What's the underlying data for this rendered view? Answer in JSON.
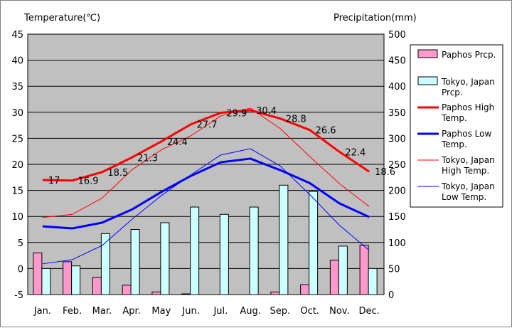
{
  "chart_data": {
    "type": "bar",
    "categories": [
      "Jan.",
      "Feb.",
      "Mar.",
      "Apr.",
      "May",
      "Jun.",
      "Jul.",
      "Aug.",
      "Sep.",
      "Oct.",
      "Nov.",
      "Dec."
    ],
    "y_left": {
      "label": "Temperature(℃)",
      "range": [
        -5,
        45
      ],
      "ticks": [
        -5,
        0,
        5,
        10,
        15,
        20,
        25,
        30,
        35,
        40,
        45
      ]
    },
    "y_right": {
      "label": "Precipitation(mm)",
      "range": [
        0,
        500
      ],
      "ticks": [
        0,
        50,
        100,
        150,
        200,
        250,
        300,
        350,
        400,
        450,
        500
      ]
    },
    "grid": true,
    "plot_background": "#c0c0c0",
    "legend_position": "right",
    "bar_series": [
      {
        "name": "Paphos Prcp.",
        "axis": "right",
        "color": "#ff99cc",
        "values": [
          80,
          63,
          33,
          18,
          5,
          1,
          0,
          0,
          5,
          19,
          66,
          95
        ]
      },
      {
        "name": "Tokyo, Japan Prcp.",
        "axis": "right",
        "color": "#ccffff",
        "values": [
          50,
          55,
          117,
          125,
          138,
          168,
          154,
          168,
          210,
          198,
          93,
          50
        ]
      }
    ],
    "line_series": [
      {
        "name": "Paphos High Temp.",
        "axis": "left",
        "color": "#ff0000",
        "width": 3,
        "values": [
          17,
          16.9,
          18.5,
          21.3,
          24.4,
          27.7,
          29.9,
          30.4,
          28.8,
          26.6,
          22.4,
          18.6
        ],
        "labels": [
          "17",
          "16.9",
          "18.5",
          "21.3",
          "24.4",
          "27.7",
          "29.9",
          "30.4",
          "28.8",
          "26.6",
          "22.4",
          "18.6"
        ]
      },
      {
        "name": "Paphos Low Temp.",
        "axis": "left",
        "color": "#0000ff",
        "width": 3,
        "values": [
          8.1,
          7.7,
          8.8,
          11.3,
          14.7,
          17.8,
          20.4,
          21.1,
          18.9,
          16.4,
          12.5,
          9.9
        ]
      },
      {
        "name": "Tokyo, Japan High Temp.",
        "axis": "left",
        "color": "#ff0000",
        "width": 1,
        "values": [
          9.8,
          10.4,
          13.5,
          18.9,
          22.8,
          25.5,
          29.3,
          30.8,
          26.9,
          21.5,
          16.3,
          11.9
        ]
      },
      {
        "name": "Tokyo, Japan Low Temp.",
        "axis": "left",
        "color": "#0000ff",
        "width": 1,
        "values": [
          0.9,
          1.7,
          4.4,
          9.4,
          14.0,
          18.0,
          21.8,
          23.0,
          19.7,
          14.2,
          8.3,
          3.5
        ]
      }
    ]
  },
  "legend": {
    "items": [
      {
        "label_lines": [
          "Paphos Prcp."
        ],
        "kind": "bar",
        "color": "#ff99cc"
      },
      {
        "label_lines": [
          "Tokyo, Japan",
          "Prcp."
        ],
        "kind": "bar",
        "color": "#ccffff"
      },
      {
        "label_lines": [
          "Paphos High",
          "Temp."
        ],
        "kind": "line",
        "color": "#ff0000",
        "width": 3
      },
      {
        "label_lines": [
          "Paphos Low",
          "Temp."
        ],
        "kind": "line",
        "color": "#0000ff",
        "width": 3
      },
      {
        "label_lines": [
          "Tokyo, Japan",
          "High Temp."
        ],
        "kind": "line",
        "color": "#ff0000",
        "width": 1
      },
      {
        "label_lines": [
          "Tokyo, Japan",
          "Low Temp."
        ],
        "kind": "line",
        "color": "#0000ff",
        "width": 1
      }
    ]
  }
}
